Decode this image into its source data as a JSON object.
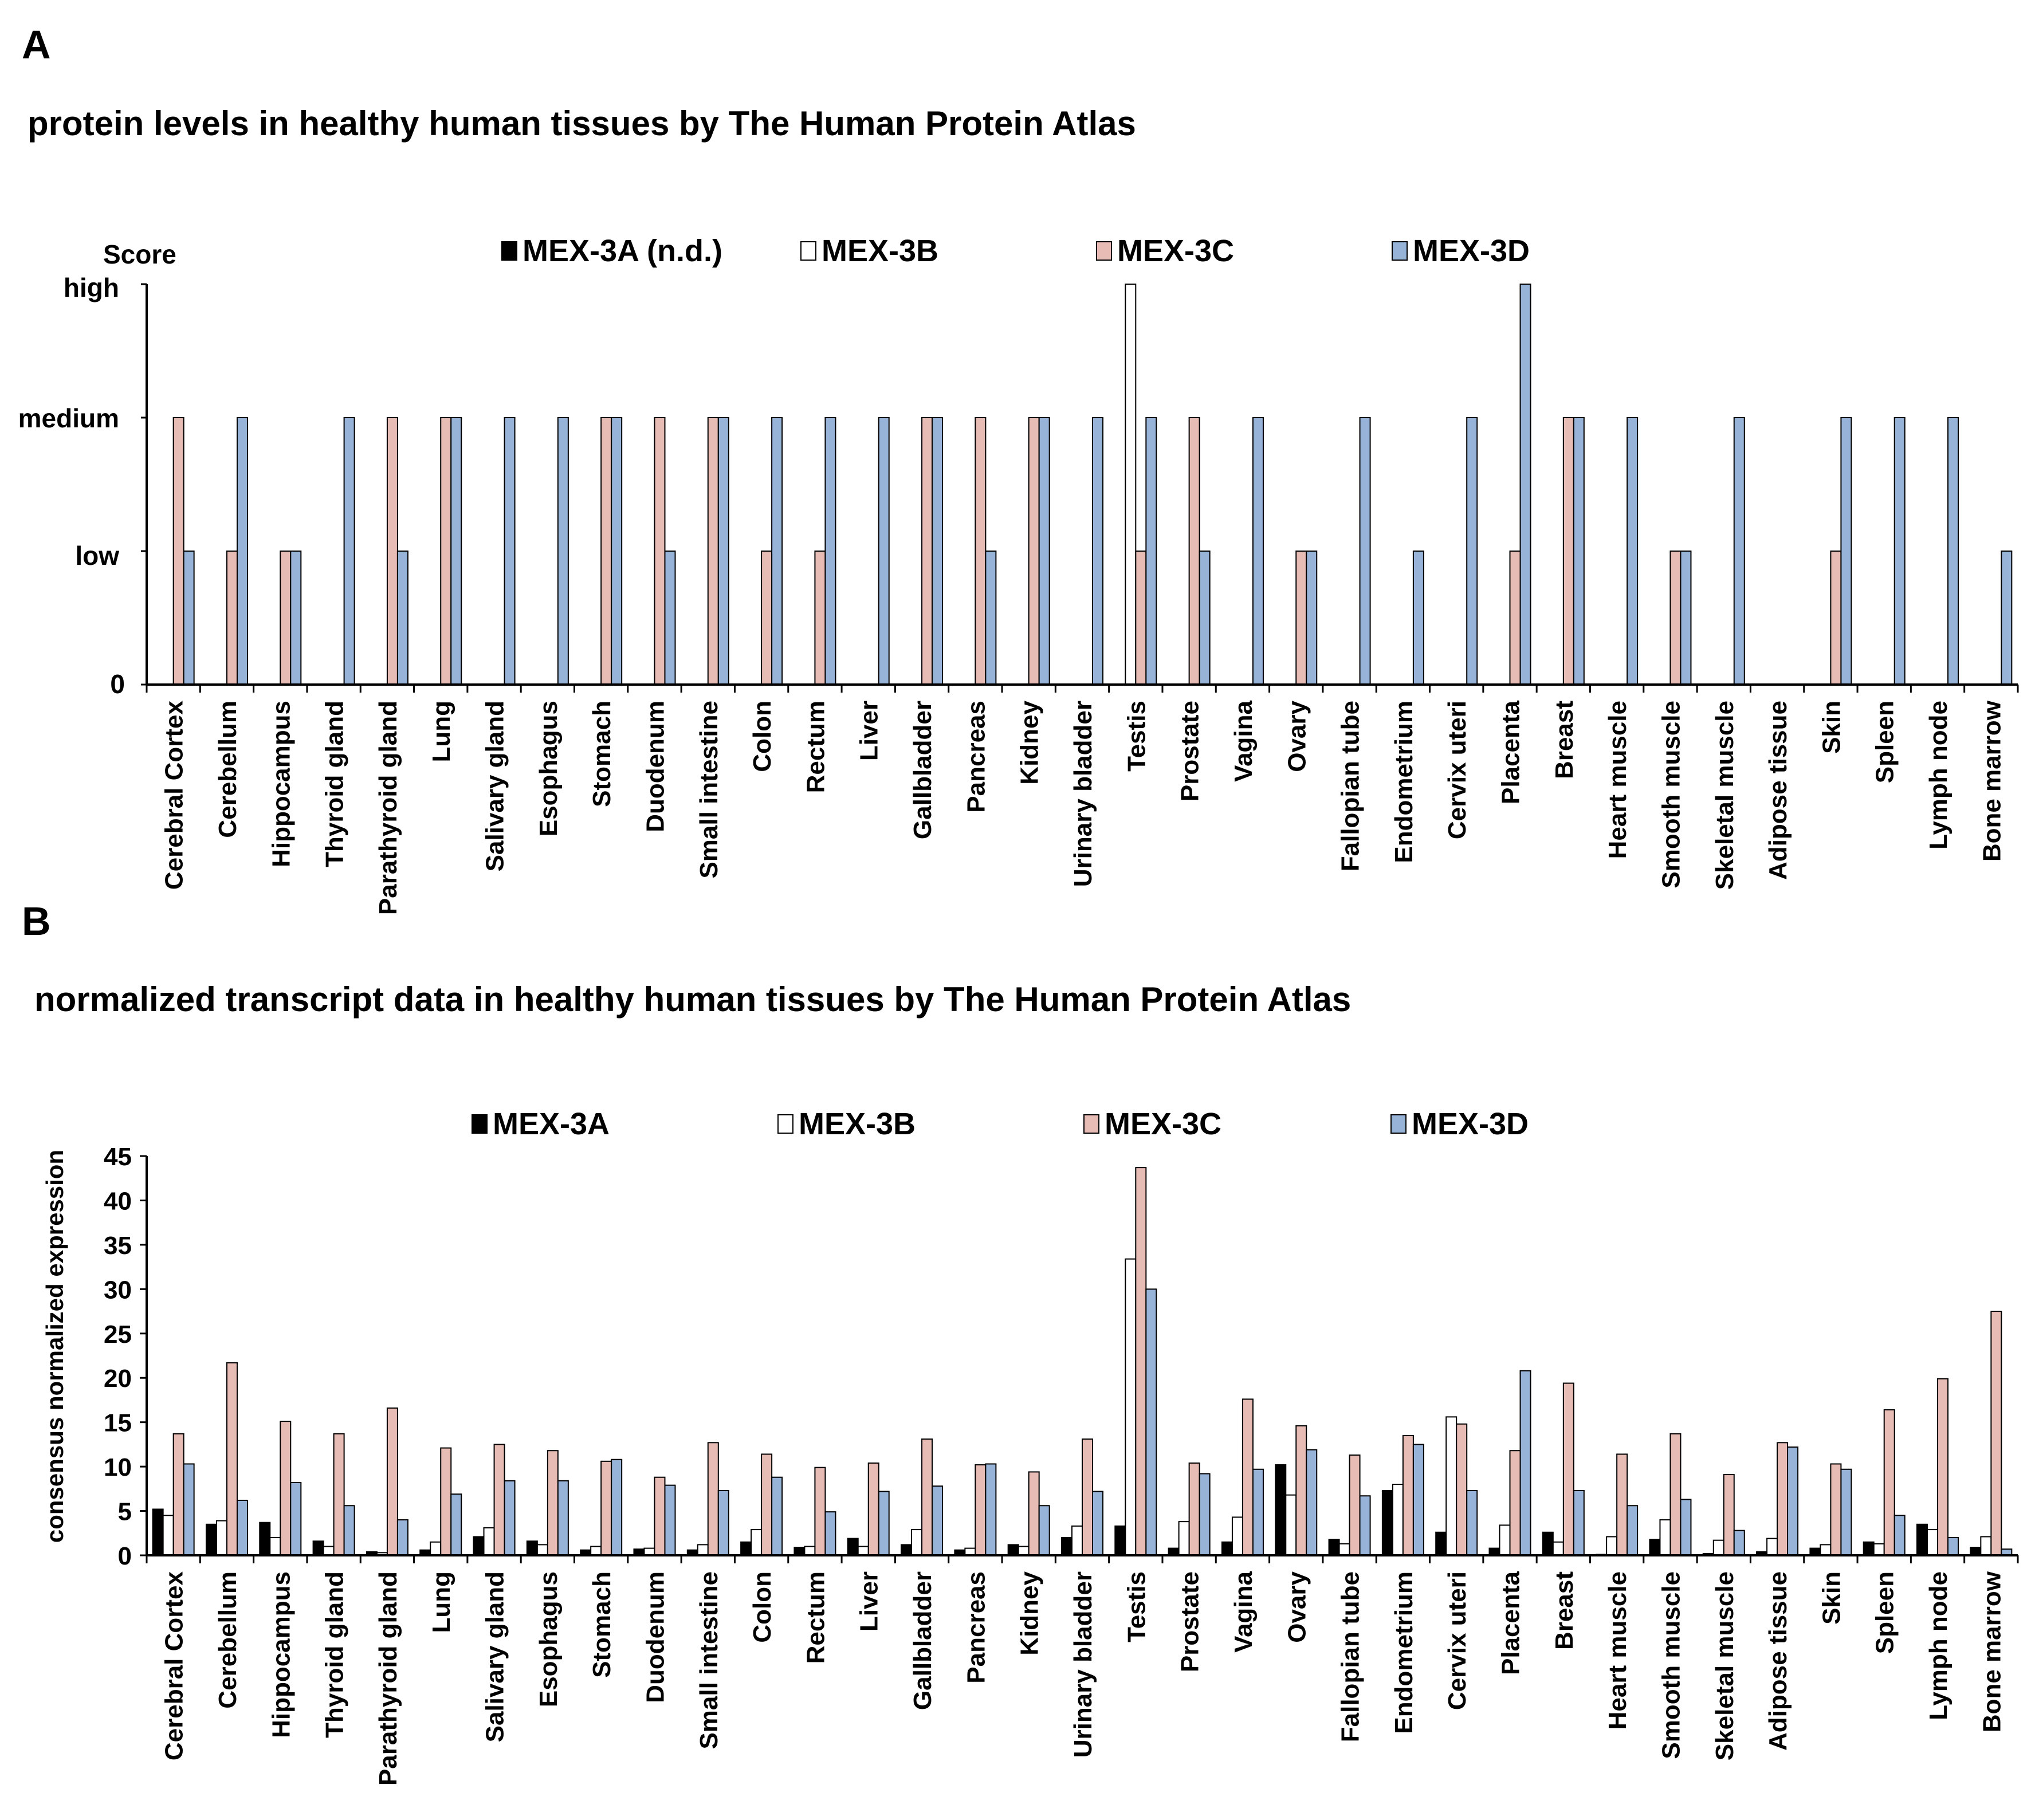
{
  "colors": {
    "MEX-3A": "#000000",
    "MEX-3B": "#ffffff",
    "MEX-3C": "#e7bcb5",
    "MEX-3D": "#98b3d8",
    "stroke": "#000000"
  },
  "chart_data": [
    {
      "panel_label": "A",
      "type": "bar",
      "title": "protein levels in healthy human tissues by The Human Protein Atlas",
      "ylabel": "Score",
      "ytick_labels": [
        "0",
        "low",
        "medium",
        "high"
      ],
      "ylim": [
        0,
        3
      ],
      "legend_position": "top",
      "legend": [
        "MEX-3A (n.d.)",
        "MEX-3B",
        "MEX-3C",
        "MEX-3D"
      ],
      "categories": [
        "Cerebral Cortex",
        "Cerebellum",
        "Hippocampus",
        "Thyroid gland",
        "Parathyroid gland",
        "Lung",
        "Salivary gland",
        "Esophagus",
        "Stomach",
        "Duodenum",
        "Small intestine",
        "Colon",
        "Rectum",
        "Liver",
        "Gallbladder",
        "Pancreas",
        "Kidney",
        "Urinary bladder",
        "Testis",
        "Prostate",
        "Vagina",
        "Ovary",
        "Fallopian tube",
        "Endometrium",
        "Cervix uteri",
        "Placenta",
        "Breast",
        "Heart muscle",
        "Smooth muscle",
        "Skeletal muscle",
        "Adipose tissue",
        "Skin",
        "Spleen",
        "Lymph node",
        "Bone marrow"
      ],
      "series": [
        {
          "name": "MEX-3A",
          "values": [
            0,
            0,
            0,
            0,
            0,
            0,
            0,
            0,
            0,
            0,
            0,
            0,
            0,
            0,
            0,
            0,
            0,
            0,
            0,
            0,
            0,
            0,
            0,
            0,
            0,
            0,
            0,
            0,
            0,
            0,
            0,
            0,
            0,
            0,
            0
          ]
        },
        {
          "name": "MEX-3B",
          "values": [
            0,
            0,
            0,
            0,
            0,
            0,
            0,
            0,
            0,
            0,
            0,
            0,
            0,
            0,
            0,
            0,
            0,
            0,
            3,
            0,
            0,
            0,
            0,
            0,
            0,
            0,
            0,
            0,
            0,
            0,
            0,
            0,
            0,
            0,
            0
          ]
        },
        {
          "name": "MEX-3C",
          "values": [
            2,
            1,
            1,
            0,
            2,
            2,
            0,
            0,
            2,
            2,
            2,
            1,
            1,
            0,
            2,
            2,
            2,
            0,
            1,
            2,
            0,
            1,
            0,
            0,
            0,
            1,
            2,
            0,
            1,
            0,
            0,
            1,
            0,
            0,
            0
          ]
        },
        {
          "name": "MEX-3D",
          "values": [
            1,
            2,
            1,
            2,
            1,
            2,
            2,
            2,
            2,
            1,
            2,
            2,
            2,
            2,
            2,
            1,
            2,
            2,
            2,
            1,
            2,
            1,
            2,
            1,
            2,
            3,
            2,
            2,
            1,
            2,
            0,
            2,
            2,
            2,
            1
          ]
        }
      ]
    },
    {
      "panel_label": "B",
      "type": "bar",
      "title": "normalized transcript data in healthy human tissues by The Human Protein Atlas",
      "ylabel": "consensus normalized expression",
      "ylim": [
        0,
        45
      ],
      "yticks": [
        "0",
        "5",
        "10",
        "15",
        "20",
        "25",
        "30",
        "35",
        "40",
        "45"
      ],
      "legend_position": "top",
      "legend": [
        "MEX-3A",
        "MEX-3B",
        "MEX-3C",
        "MEX-3D"
      ],
      "categories": [
        "Cerebral Cortex",
        "Cerebellum",
        "Hippocampus",
        "Thyroid gland",
        "Parathyroid gland",
        "Lung",
        "Salivary gland",
        "Esophagus",
        "Stomach",
        "Duodenum",
        "Small intestine",
        "Colon",
        "Rectum",
        "Liver",
        "Gallbladder",
        "Pancreas",
        "Kidney",
        "Urinary bladder",
        "Testis",
        "Prostate",
        "Vagina",
        "Ovary",
        "Fallopian tube",
        "Endometrium",
        "Cervix uteri",
        "Placenta",
        "Breast",
        "Heart muscle",
        "Smooth muscle",
        "Skeletal muscle",
        "Adipose tissue",
        "Skin",
        "Spleen",
        "Lymph node",
        "Bone marrow"
      ],
      "series": [
        {
          "name": "MEX-3A",
          "values": [
            5.2,
            3.5,
            3.7,
            1.6,
            0.4,
            0.6,
            2.1,
            1.6,
            0.6,
            0.7,
            0.6,
            1.5,
            0.9,
            1.9,
            1.2,
            0.6,
            1.2,
            2.0,
            3.3,
            0.8,
            1.5,
            10.2,
            1.8,
            7.3,
            2.6,
            0.8,
            2.6,
            0.1,
            1.8,
            0.2,
            0.4,
            0.8,
            1.5,
            3.5,
            0.9
          ]
        },
        {
          "name": "MEX-3B",
          "values": [
            4.5,
            3.9,
            2.0,
            1.0,
            0.3,
            1.5,
            3.1,
            1.2,
            1.0,
            0.8,
            1.2,
            2.9,
            1.0,
            1.0,
            2.9,
            0.8,
            1.0,
            3.3,
            33.4,
            3.8,
            4.3,
            6.8,
            1.3,
            8.0,
            15.6,
            3.4,
            1.5,
            2.1,
            4.0,
            1.7,
            1.9,
            1.2,
            1.3,
            2.9,
            2.1
          ]
        },
        {
          "name": "MEX-3C",
          "values": [
            13.7,
            21.7,
            15.1,
            13.7,
            16.6,
            12.1,
            12.5,
            11.8,
            10.6,
            8.8,
            12.7,
            11.4,
            9.9,
            10.4,
            13.1,
            10.2,
            9.4,
            13.1,
            43.7,
            10.4,
            17.6,
            14.6,
            11.3,
            13.5,
            14.8,
            11.8,
            19.4,
            11.4,
            13.7,
            9.1,
            12.7,
            10.3,
            16.4,
            19.9,
            27.5
          ]
        },
        {
          "name": "MEX-3D",
          "values": [
            10.3,
            6.2,
            8.2,
            5.6,
            4.0,
            6.9,
            8.4,
            8.4,
            10.8,
            7.9,
            7.3,
            8.8,
            4.9,
            7.2,
            7.8,
            10.3,
            5.6,
            7.2,
            30.0,
            9.2,
            9.7,
            11.9,
            6.7,
            12.5,
            7.3,
            20.8,
            7.3,
            5.6,
            6.3,
            2.8,
            12.2,
            9.7,
            4.5,
            2.0,
            0.7
          ]
        }
      ]
    }
  ]
}
